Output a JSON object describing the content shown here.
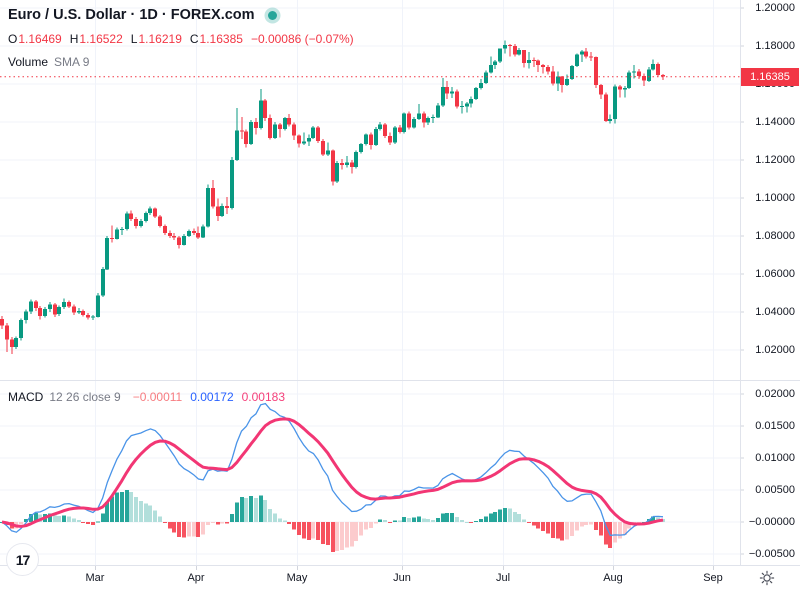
{
  "header": {
    "title": "Euro / U.S. Dollar · 1D · FOREX.com"
  },
  "ohlc": {
    "open_label": "O",
    "open": "1.16469",
    "high_label": "H",
    "high": "1.16522",
    "low_label": "L",
    "low": "1.16219",
    "close_label": "C",
    "close": "1.16385",
    "change": "−0.00086 (−0.07%)"
  },
  "volume": {
    "label": "Volume",
    "params": "SMA 9"
  },
  "macd_row": {
    "label": "MACD",
    "params": "12 26 close 9",
    "histogram_value": "−0.00011",
    "macd_value": "0.00172",
    "signal_value": "0.00183"
  },
  "price_tag": "1.16385",
  "logo_text": "17",
  "axes": {
    "price_labels": [
      "1.20000",
      "1.18000",
      "1.16000",
      "1.14000",
      "1.12000",
      "1.10000",
      "1.08000",
      "1.06000",
      "1.04000",
      "1.02000"
    ],
    "macd_labels": [
      "0.02000",
      "0.01500",
      "0.01000",
      "0.00500",
      "−0.00000",
      "−0.00500"
    ]
  },
  "colors": {
    "up": "#089981",
    "down": "#f23645",
    "macd_line": "#4a94e8",
    "signal_line": "#f23674",
    "hist_up": "#26a69a",
    "hist_up_fade": "#b2dfdb",
    "hist_down": "#f7525f",
    "hist_down_fade": "#fccbcd",
    "grid": "#f0f3fa",
    "border": "#e0e3eb",
    "tick": "#d1d4dc",
    "text": "#131722",
    "muted": "#787b86",
    "last_price_line": "#f23645",
    "accent_dot": "#26a69a"
  },
  "chart_data": {
    "type": "candlestick",
    "title": "Euro / U.S. Dollar",
    "interval": "1D",
    "source": "FOREX.com",
    "price_axis": {
      "min": 1.02,
      "max": 1.2,
      "step": 0.02,
      "grid": true
    },
    "last_price": 1.16385,
    "months": [
      {
        "label": "Mar",
        "start_index": 20
      },
      {
        "label": "Apr",
        "start_index": 41
      },
      {
        "label": "May",
        "start_index": 62
      },
      {
        "label": "Jun",
        "start_index": 84
      },
      {
        "label": "Jul",
        "start_index": 105
      },
      {
        "label": "Aug",
        "start_index": 128
      },
      {
        "label": "Sep",
        "start_index": 149
      }
    ],
    "indicator": {
      "type": "MACD",
      "fast": 12,
      "slow": 26,
      "source": "close",
      "signal": 9,
      "axis": {
        "min": -0.005,
        "max": 0.02,
        "step": 0.005
      },
      "last": {
        "histogram": -0.00011,
        "macd": 0.00172,
        "signal": 0.00183
      }
    },
    "candles": [
      [
        1.0362,
        1.038,
        1.031,
        1.033
      ],
      [
        1.033,
        1.0341,
        1.019,
        1.0255
      ],
      [
        1.0255,
        1.0268,
        1.0178,
        1.0215
      ],
      [
        1.0215,
        1.027,
        1.0205,
        1.0262
      ],
      [
        1.0262,
        1.0365,
        1.025,
        1.0358
      ],
      [
        1.0358,
        1.0412,
        1.034,
        1.0402
      ],
      [
        1.0402,
        1.0465,
        1.039,
        1.0455
      ],
      [
        1.0455,
        1.0462,
        1.0405,
        1.042
      ],
      [
        1.042,
        1.0432,
        1.036,
        1.0378
      ],
      [
        1.0378,
        1.0425,
        1.037,
        1.0415
      ],
      [
        1.0415,
        1.0452,
        1.04,
        1.044
      ],
      [
        1.044,
        1.0448,
        1.0375,
        1.0388
      ],
      [
        1.0388,
        1.0435,
        1.038,
        1.0425
      ],
      [
        1.0425,
        1.047,
        1.0415,
        1.0452
      ],
      [
        1.0452,
        1.046,
        1.042,
        1.043
      ],
      [
        1.043,
        1.044,
        1.0385,
        1.0398
      ],
      [
        1.0398,
        1.042,
        1.039,
        1.0405
      ],
      [
        1.0405,
        1.0412,
        1.0375,
        1.0385
      ],
      [
        1.0385,
        1.0395,
        1.036,
        1.037
      ],
      [
        1.037,
        1.0385,
        1.0358,
        1.0375
      ],
      [
        1.0375,
        1.05,
        1.0372,
        1.0486
      ],
      [
        1.0486,
        1.0637,
        1.048,
        1.0625
      ],
      [
        1.0625,
        1.08,
        1.062,
        1.0789
      ],
      [
        1.0789,
        1.0854,
        1.0765,
        1.0785
      ],
      [
        1.0785,
        1.0845,
        1.078,
        1.0834
      ],
      [
        1.0834,
        1.0848,
        1.0805,
        1.0837
      ],
      [
        1.0837,
        1.093,
        1.083,
        1.0919
      ],
      [
        1.0919,
        1.0935,
        1.088,
        1.0889
      ],
      [
        1.0889,
        1.09,
        1.084,
        1.0853
      ],
      [
        1.0853,
        1.089,
        1.0845,
        1.0879
      ],
      [
        1.0879,
        1.093,
        1.087,
        1.0922
      ],
      [
        1.0922,
        1.0954,
        1.091,
        1.0944
      ],
      [
        1.0944,
        1.095,
        1.0895,
        1.0902
      ],
      [
        1.0902,
        1.091,
        1.0845,
        1.0853
      ],
      [
        1.0853,
        1.086,
        1.0805,
        1.0815
      ],
      [
        1.0815,
        1.083,
        1.079,
        1.0801
      ],
      [
        1.0801,
        1.0815,
        1.078,
        1.0792
      ],
      [
        1.0792,
        1.08,
        1.0733,
        1.0753
      ],
      [
        1.0753,
        1.081,
        1.075,
        1.0801
      ],
      [
        1.0801,
        1.0835,
        1.0795,
        1.0827
      ],
      [
        1.0827,
        1.084,
        1.0805,
        1.0816
      ],
      [
        1.0816,
        1.085,
        1.0785,
        1.0793
      ],
      [
        1.0793,
        1.086,
        1.079,
        1.0851
      ],
      [
        1.0851,
        1.107,
        1.0845,
        1.1052
      ],
      [
        1.1052,
        1.1095,
        1.0945,
        1.0956
      ],
      [
        1.0956,
        1.0998,
        1.088,
        1.0905
      ],
      [
        1.0905,
        1.097,
        1.09,
        1.0958
      ],
      [
        1.0958,
        1.1005,
        1.0915,
        1.0948
      ],
      [
        1.0948,
        1.1215,
        1.094,
        1.1201
      ],
      [
        1.1201,
        1.1474,
        1.1195,
        1.1355
      ],
      [
        1.1355,
        1.1425,
        1.131,
        1.1351
      ],
      [
        1.1351,
        1.136,
        1.1265,
        1.1284
      ],
      [
        1.1284,
        1.141,
        1.128,
        1.1399
      ],
      [
        1.1399,
        1.142,
        1.1335,
        1.1368
      ],
      [
        1.1368,
        1.1573,
        1.136,
        1.1512
      ],
      [
        1.1512,
        1.152,
        1.1405,
        1.1421
      ],
      [
        1.1421,
        1.144,
        1.1308,
        1.1316
      ],
      [
        1.1316,
        1.14,
        1.131,
        1.1387
      ],
      [
        1.1387,
        1.1395,
        1.132,
        1.1363
      ],
      [
        1.1363,
        1.1425,
        1.1355,
        1.142
      ],
      [
        1.142,
        1.1442,
        1.1375,
        1.1387
      ],
      [
        1.1387,
        1.1398,
        1.1305,
        1.1328
      ],
      [
        1.1328,
        1.1335,
        1.1265,
        1.1288
      ],
      [
        1.1288,
        1.1345,
        1.128,
        1.1297
      ],
      [
        1.1297,
        1.1335,
        1.1275,
        1.1316
      ],
      [
        1.1316,
        1.1378,
        1.131,
        1.137
      ],
      [
        1.137,
        1.138,
        1.129,
        1.13
      ],
      [
        1.13,
        1.131,
        1.122,
        1.1228
      ],
      [
        1.1228,
        1.1292,
        1.122,
        1.125
      ],
      [
        1.125,
        1.1255,
        1.1065,
        1.1087
      ],
      [
        1.1087,
        1.1195,
        1.108,
        1.1185
      ],
      [
        1.1185,
        1.1205,
        1.115,
        1.1173
      ],
      [
        1.1173,
        1.122,
        1.116,
        1.1187
      ],
      [
        1.1187,
        1.12,
        1.113,
        1.1163
      ],
      [
        1.1163,
        1.125,
        1.1155,
        1.1243
      ],
      [
        1.1243,
        1.129,
        1.1235,
        1.1283
      ],
      [
        1.1283,
        1.134,
        1.1275,
        1.1333
      ],
      [
        1.1333,
        1.1345,
        1.1255,
        1.128
      ],
      [
        1.128,
        1.1375,
        1.1275,
        1.1362
      ],
      [
        1.1362,
        1.14,
        1.1355,
        1.1388
      ],
      [
        1.1388,
        1.1395,
        1.1315,
        1.1326
      ],
      [
        1.1326,
        1.1345,
        1.128,
        1.1293
      ],
      [
        1.1293,
        1.138,
        1.1285,
        1.1371
      ],
      [
        1.1371,
        1.1383,
        1.134,
        1.1347
      ],
      [
        1.1347,
        1.145,
        1.134,
        1.1444
      ],
      [
        1.1444,
        1.1455,
        1.136,
        1.1372
      ],
      [
        1.1372,
        1.1425,
        1.1365,
        1.1417
      ],
      [
        1.1417,
        1.1495,
        1.141,
        1.1446
      ],
      [
        1.1446,
        1.1455,
        1.1372,
        1.1397
      ],
      [
        1.1397,
        1.1428,
        1.1385,
        1.142
      ],
      [
        1.142,
        1.144,
        1.1395,
        1.1425
      ],
      [
        1.1425,
        1.15,
        1.142,
        1.1486
      ],
      [
        1.1486,
        1.1631,
        1.148,
        1.1584
      ],
      [
        1.1584,
        1.1615,
        1.152,
        1.155
      ],
      [
        1.155,
        1.1585,
        1.1525,
        1.1561
      ],
      [
        1.1561,
        1.157,
        1.147,
        1.1482
      ],
      [
        1.1482,
        1.151,
        1.1445,
        1.1483
      ],
      [
        1.1483,
        1.1505,
        1.145,
        1.1497
      ],
      [
        1.1497,
        1.1535,
        1.1475,
        1.1521
      ],
      [
        1.1521,
        1.1585,
        1.1515,
        1.1578
      ],
      [
        1.1578,
        1.1625,
        1.157,
        1.1606
      ],
      [
        1.1606,
        1.167,
        1.16,
        1.166
      ],
      [
        1.166,
        1.1745,
        1.1655,
        1.17
      ],
      [
        1.17,
        1.1725,
        1.168,
        1.1718
      ],
      [
        1.1718,
        1.1788,
        1.171,
        1.1786
      ],
      [
        1.1786,
        1.1829,
        1.176,
        1.1806
      ],
      [
        1.1806,
        1.181,
        1.1746,
        1.18
      ],
      [
        1.18,
        1.181,
        1.1745,
        1.1756
      ],
      [
        1.1756,
        1.179,
        1.175,
        1.1778
      ],
      [
        1.1778,
        1.178,
        1.1686,
        1.171
      ],
      [
        1.171,
        1.1768,
        1.1682,
        1.1725
      ],
      [
        1.1725,
        1.174,
        1.169,
        1.1723
      ],
      [
        1.1723,
        1.173,
        1.1663,
        1.17
      ],
      [
        1.17,
        1.1705,
        1.1655,
        1.1689
      ],
      [
        1.1689,
        1.17,
        1.165,
        1.1667
      ],
      [
        1.1667,
        1.1695,
        1.1593,
        1.1602
      ],
      [
        1.1602,
        1.1665,
        1.1562,
        1.1639
      ],
      [
        1.1639,
        1.1642,
        1.1556,
        1.1596
      ],
      [
        1.1596,
        1.165,
        1.159,
        1.1626
      ],
      [
        1.1626,
        1.17,
        1.162,
        1.1695
      ],
      [
        1.1695,
        1.176,
        1.169,
        1.1755
      ],
      [
        1.1755,
        1.178,
        1.1715,
        1.1772
      ],
      [
        1.1772,
        1.1789,
        1.1735,
        1.1745
      ],
      [
        1.1745,
        1.1768,
        1.172,
        1.1741
      ],
      [
        1.1741,
        1.1745,
        1.158,
        1.1594
      ],
      [
        1.1594,
        1.16,
        1.152,
        1.1545
      ],
      [
        1.1545,
        1.1555,
        1.14,
        1.1405
      ],
      [
        1.1405,
        1.144,
        1.1392,
        1.1417
      ],
      [
        1.1417,
        1.1597,
        1.1392,
        1.1586
      ],
      [
        1.1586,
        1.1594,
        1.1528,
        1.157
      ],
      [
        1.157,
        1.159,
        1.153,
        1.1579
      ],
      [
        1.1579,
        1.167,
        1.1575,
        1.166
      ],
      [
        1.166,
        1.1699,
        1.163,
        1.1665
      ],
      [
        1.1665,
        1.168,
        1.1625,
        1.1643
      ],
      [
        1.1643,
        1.1655,
        1.159,
        1.1617
      ],
      [
        1.1617,
        1.169,
        1.161,
        1.1677
      ],
      [
        1.1677,
        1.173,
        1.167,
        1.1705
      ],
      [
        1.1705,
        1.1712,
        1.164,
        1.1647
      ],
      [
        1.16469,
        1.16522,
        1.16219,
        1.16385
      ]
    ]
  }
}
